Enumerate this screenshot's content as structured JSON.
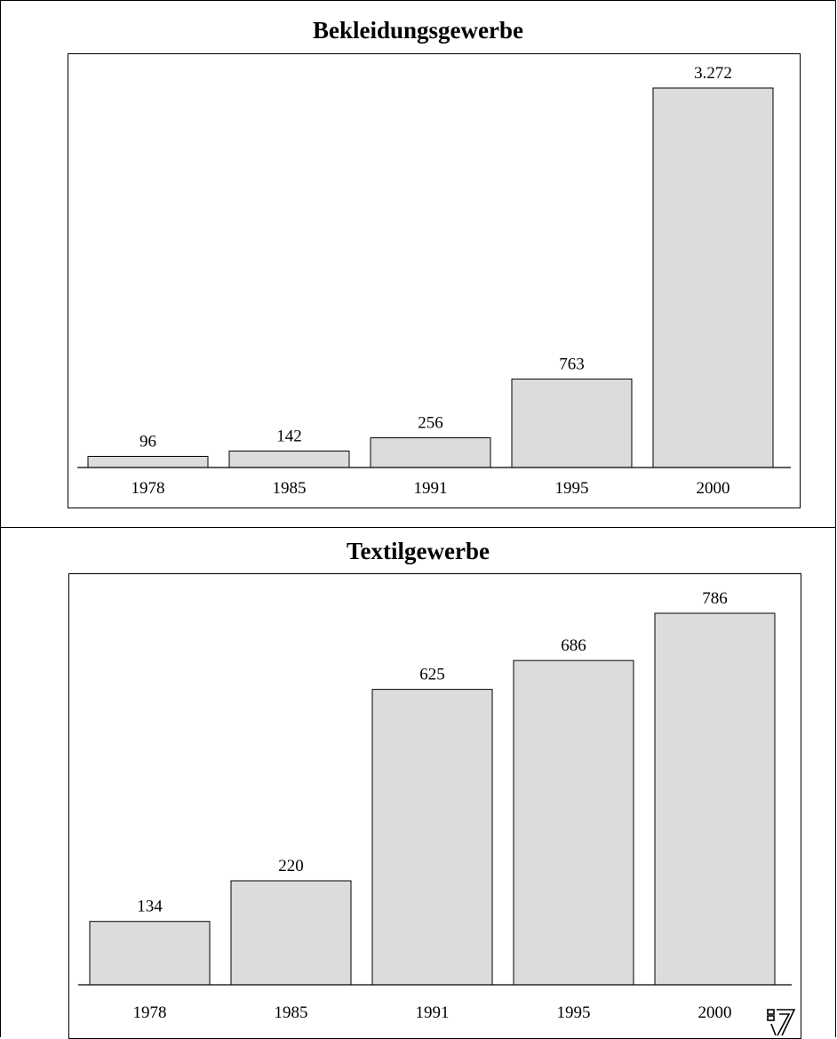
{
  "chart_data": [
    {
      "type": "bar",
      "title": "Bekleidungsgewerbe",
      "categories": [
        "1978",
        "1985",
        "1991",
        "1995",
        "2000"
      ],
      "values": [
        96,
        142,
        256,
        763,
        3272
      ],
      "value_labels": [
        "96",
        "142",
        "256",
        "763",
        "3.272"
      ],
      "xlabel": "",
      "ylabel": "",
      "ylim": [
        0,
        3272
      ],
      "grid": false,
      "bar_color": "#dcdcdc"
    },
    {
      "type": "bar",
      "title": "Textilgewerbe",
      "categories": [
        "1978",
        "1985",
        "1991",
        "1995",
        "2000"
      ],
      "values": [
        134,
        220,
        625,
        686,
        786
      ],
      "value_labels": [
        "134",
        "220",
        "625",
        "686",
        "786"
      ],
      "xlabel": "",
      "ylabel": "",
      "ylim": [
        0,
        786
      ],
      "grid": false,
      "bar_color": "#dcdcdc"
    }
  ],
  "logo": {
    "icon": "publisher-logo-icon"
  }
}
